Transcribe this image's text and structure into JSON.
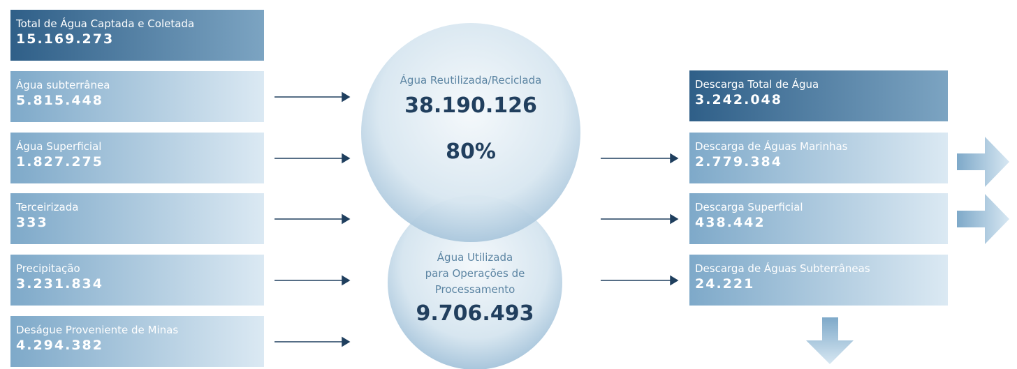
{
  "inputs": {
    "total": {
      "label": "Total de Água Captada e Coletada",
      "value": "15.169.273"
    },
    "items": [
      {
        "label": "Água subterrânea",
        "value": "5.815.448"
      },
      {
        "label": "Água Superficial",
        "value": "1.827.275"
      },
      {
        "label": "Terceirizada",
        "value": "333"
      },
      {
        "label": "Precipitação",
        "value": "3.231.834"
      },
      {
        "label": "Deságue Proveniente de Minas",
        "value": "4.294.382"
      }
    ]
  },
  "reused": {
    "label": "Água Reutilizada/Reciclada",
    "value": "38.190.126",
    "percent": "80%"
  },
  "processing": {
    "label_lines": [
      "Água Utilizada",
      "para Operações de",
      "Processamento"
    ],
    "value": "9.706.493"
  },
  "outputs": {
    "total": {
      "label": "Descarga Total de Água",
      "value": "3.242.048"
    },
    "items": [
      {
        "label": "Descarga de Águas Marinhas",
        "value": "2.779.384"
      },
      {
        "label": "Descarga Superficial",
        "value": "438.442"
      },
      {
        "label": "Descarga de Águas Subterrâneas",
        "value": "24.221"
      }
    ]
  }
}
